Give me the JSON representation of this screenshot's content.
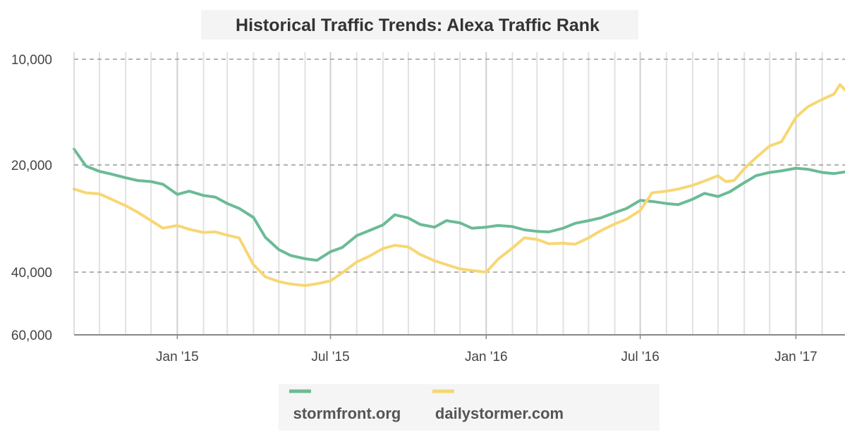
{
  "chart_data": {
    "type": "line",
    "title": "Historical Traffic Trends: Alexa Traffic Rank",
    "xlabel": "",
    "ylabel": "",
    "y_axis": {
      "reversed": true,
      "ticks": [
        10000,
        20000,
        40000,
        60000
      ],
      "tick_labels": [
        "10,000",
        "20,000",
        "40,000",
        "60,000"
      ]
    },
    "x_axis": {
      "range": [
        "2014-09-01",
        "2017-02-28"
      ],
      "ticks": [
        "2015-01-01",
        "2015-07-01",
        "2016-01-01",
        "2016-07-01",
        "2017-01-01"
      ],
      "tick_labels": [
        "Jan '15",
        "Jul '15",
        "Jan '16",
        "Jul '16",
        "Jan '17"
      ]
    },
    "grid": true,
    "legend_position": "bottom",
    "series": [
      {
        "name": "stormfront.org",
        "color": "#6bbb95",
        "points": [
          [
            "2014-09-01",
            18500
          ],
          [
            "2014-09-15",
            20200
          ],
          [
            "2014-10-01",
            21200
          ],
          [
            "2014-10-15",
            21700
          ],
          [
            "2014-11-01",
            22400
          ],
          [
            "2014-11-15",
            22900
          ],
          [
            "2014-12-01",
            23100
          ],
          [
            "2014-12-15",
            23600
          ],
          [
            "2015-01-01",
            25500
          ],
          [
            "2015-01-15",
            24900
          ],
          [
            "2015-02-01",
            25700
          ],
          [
            "2015-02-15",
            26000
          ],
          [
            "2015-03-01",
            27200
          ],
          [
            "2015-03-15",
            28100
          ],
          [
            "2015-04-01",
            29800
          ],
          [
            "2015-04-15",
            33500
          ],
          [
            "2015-05-01",
            35800
          ],
          [
            "2015-05-15",
            36900
          ],
          [
            "2015-06-01",
            37500
          ],
          [
            "2015-06-15",
            37800
          ],
          [
            "2015-07-01",
            36200
          ],
          [
            "2015-07-15",
            35400
          ],
          [
            "2015-08-01",
            33200
          ],
          [
            "2015-08-15",
            32300
          ],
          [
            "2015-09-01",
            31200
          ],
          [
            "2015-09-15",
            29300
          ],
          [
            "2015-10-01",
            29900
          ],
          [
            "2015-10-15",
            31100
          ],
          [
            "2015-11-01",
            31600
          ],
          [
            "2015-11-15",
            30400
          ],
          [
            "2015-12-01",
            30800
          ],
          [
            "2015-12-15",
            31800
          ],
          [
            "2016-01-01",
            31600
          ],
          [
            "2016-01-15",
            31300
          ],
          [
            "2016-02-01",
            31500
          ],
          [
            "2016-02-15",
            32100
          ],
          [
            "2016-03-01",
            32400
          ],
          [
            "2016-03-15",
            32500
          ],
          [
            "2016-04-01",
            31800
          ],
          [
            "2016-04-15",
            30900
          ],
          [
            "2016-05-01",
            30400
          ],
          [
            "2016-05-15",
            29900
          ],
          [
            "2016-06-01",
            28900
          ],
          [
            "2016-06-15",
            28100
          ],
          [
            "2016-07-01",
            26600
          ],
          [
            "2016-07-15",
            26800
          ],
          [
            "2016-08-01",
            27200
          ],
          [
            "2016-08-15",
            27400
          ],
          [
            "2016-09-01",
            26400
          ],
          [
            "2016-09-15",
            25300
          ],
          [
            "2016-10-01",
            25900
          ],
          [
            "2016-10-15",
            25000
          ],
          [
            "2016-11-01",
            23300
          ],
          [
            "2016-11-15",
            22000
          ],
          [
            "2016-12-01",
            21400
          ],
          [
            "2016-12-15",
            21100
          ],
          [
            "2017-01-01",
            20600
          ],
          [
            "2017-01-15",
            20800
          ],
          [
            "2017-02-01",
            21400
          ],
          [
            "2017-02-15",
            21600
          ],
          [
            "2017-02-28",
            21300
          ]
        ]
      },
      {
        "name": "dailystormer.com",
        "color": "#f7d774",
        "points": [
          [
            "2014-09-01",
            24500
          ],
          [
            "2014-09-15",
            25200
          ],
          [
            "2014-10-01",
            25400
          ],
          [
            "2014-10-15",
            26400
          ],
          [
            "2014-11-01",
            27600
          ],
          [
            "2014-11-15",
            28800
          ],
          [
            "2014-12-01",
            30400
          ],
          [
            "2014-12-15",
            31800
          ],
          [
            "2015-01-01",
            31300
          ],
          [
            "2015-01-15",
            32000
          ],
          [
            "2015-02-01",
            32600
          ],
          [
            "2015-02-15",
            32500
          ],
          [
            "2015-03-01",
            33100
          ],
          [
            "2015-03-15",
            33600
          ],
          [
            "2015-04-01",
            38600
          ],
          [
            "2015-04-15",
            41500
          ],
          [
            "2015-05-01",
            43000
          ],
          [
            "2015-05-15",
            43800
          ],
          [
            "2015-06-01",
            44300
          ],
          [
            "2015-06-15",
            43700
          ],
          [
            "2015-07-01",
            42800
          ],
          [
            "2015-07-15",
            40200
          ],
          [
            "2015-08-01",
            38100
          ],
          [
            "2015-08-15",
            37100
          ],
          [
            "2015-09-01",
            35600
          ],
          [
            "2015-09-15",
            35000
          ],
          [
            "2015-10-01",
            35300
          ],
          [
            "2015-10-15",
            36700
          ],
          [
            "2015-11-01",
            37900
          ],
          [
            "2015-11-15",
            38600
          ],
          [
            "2015-12-01",
            39400
          ],
          [
            "2015-12-15",
            39700
          ],
          [
            "2016-01-01",
            40000
          ],
          [
            "2016-01-15",
            37600
          ],
          [
            "2016-02-01",
            35500
          ],
          [
            "2016-02-15",
            33600
          ],
          [
            "2016-03-01",
            33900
          ],
          [
            "2016-03-15",
            34700
          ],
          [
            "2016-04-01",
            34600
          ],
          [
            "2016-04-15",
            34800
          ],
          [
            "2016-05-01",
            33600
          ],
          [
            "2016-05-15",
            32300
          ],
          [
            "2016-06-01",
            31000
          ],
          [
            "2016-06-15",
            30100
          ],
          [
            "2016-07-01",
            28500
          ],
          [
            "2016-07-15",
            25200
          ],
          [
            "2016-08-01",
            24900
          ],
          [
            "2016-08-15",
            24500
          ],
          [
            "2016-09-01",
            23800
          ],
          [
            "2016-09-15",
            23000
          ],
          [
            "2016-10-01",
            22000
          ],
          [
            "2016-10-10",
            23100
          ],
          [
            "2016-10-20",
            22900
          ],
          [
            "2016-11-01",
            20700
          ],
          [
            "2016-11-15",
            19300
          ],
          [
            "2016-12-01",
            18200
          ],
          [
            "2016-12-15",
            17800
          ],
          [
            "2017-01-01",
            15500
          ],
          [
            "2017-01-15",
            14500
          ],
          [
            "2017-02-01",
            13800
          ],
          [
            "2017-02-15",
            13300
          ],
          [
            "2017-02-22",
            12400
          ],
          [
            "2017-02-28",
            12900
          ]
        ]
      }
    ]
  }
}
